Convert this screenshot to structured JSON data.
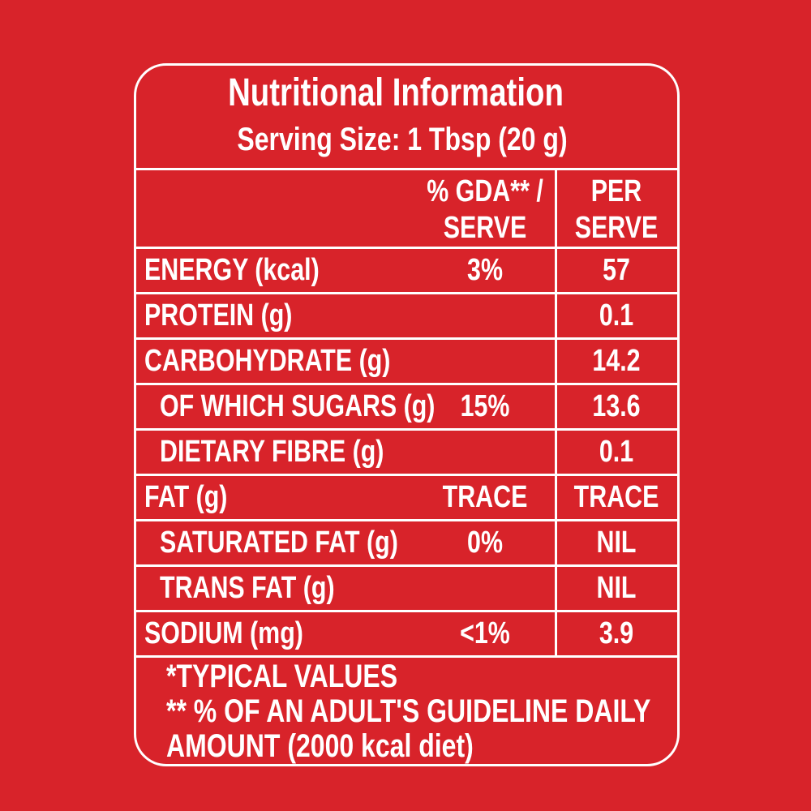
{
  "header": {
    "title": "Nutritional Information",
    "serving_size": "Serving Size: 1 Tbsp (20 g)"
  },
  "table": {
    "columns": [
      [
        "% GDA** /",
        "SERVE"
      ],
      [
        "PER",
        "SERVE"
      ]
    ],
    "rows": [
      [
        "ENERGY (kcal)",
        "3%",
        "57"
      ],
      [
        "PROTEIN (g)",
        null,
        "0.1"
      ],
      [
        "CARBOHYDRATE (g)",
        null,
        "14.2"
      ],
      [
        "OF WHICH SUGARS (g)",
        "15%",
        "13.6"
      ],
      [
        "DIETARY FIBRE (g)",
        null,
        "0.1"
      ],
      [
        "FAT (g)",
        "TRACE",
        "TRACE"
      ],
      [
        "SATURATED FAT (g)",
        "0%",
        "NIL"
      ],
      [
        "TRANS FAT (g)",
        null,
        "NIL"
      ],
      [
        "SODIUM (mg)",
        "<1%",
        "3.9"
      ]
    ]
  },
  "footnotes": [
    "*TYPICAL VALUES",
    "** % OF AN ADULT'S GUIDELINE DAILY",
    "AMOUNT (2000 kcal diet)"
  ]
}
